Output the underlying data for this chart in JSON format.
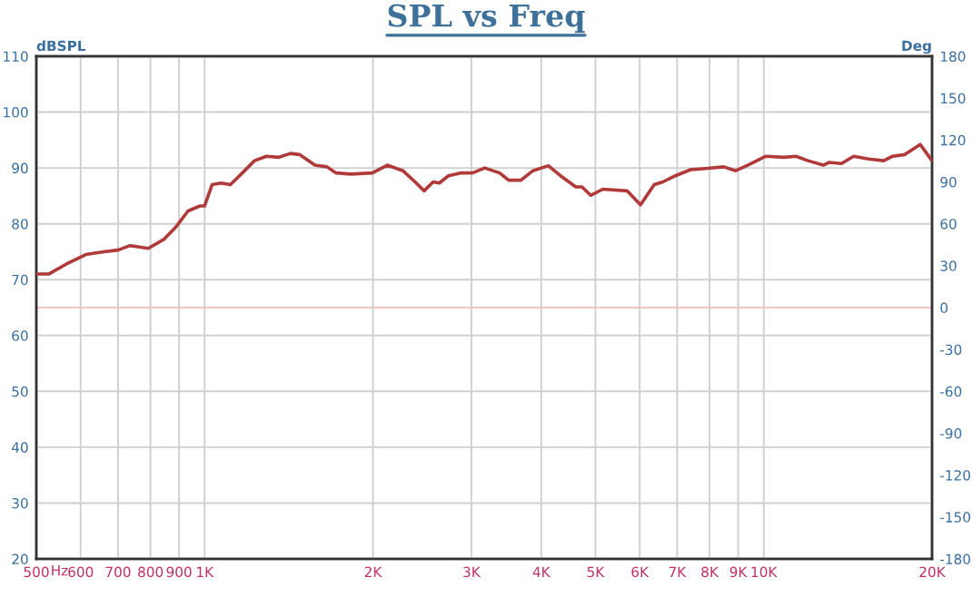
{
  "chart_data": {
    "type": "line",
    "title": "SPL vs Freq",
    "xlabel": "Hz",
    "ylabel": "dBSPL",
    "y2label": "Deg",
    "x": [
      500,
      526,
      566,
      613,
      660,
      700,
      736,
      793,
      845,
      888,
      934,
      981,
      1000,
      1031,
      1070,
      1112,
      1168,
      1228,
      1290,
      1355,
      1424,
      1478,
      1575,
      1655,
      1718,
      1829,
      1995,
      2122,
      2263,
      2379,
      2469,
      2563,
      2629,
      2729,
      2868,
      3015,
      3169,
      3370,
      3499,
      3679,
      3866,
      4118,
      4330,
      4612,
      4730,
      4903,
      5155,
      5697,
      6020,
      6370,
      6600,
      6950,
      7400,
      7870,
      8480,
      8910,
      9360,
      10090,
      10870,
      11420,
      12000,
      12780,
      13100,
      13780,
      14480,
      15400,
      16390,
      17010,
      17880,
      19050,
      20000
    ],
    "series": [
      {
        "color": "#b03a3a",
        "values": [
          71.0,
          71.0,
          72.8,
          74.5,
          75.0,
          75.3,
          76.1,
          75.6,
          77.2,
          79.4,
          82.3,
          83.2,
          83.2,
          87.0,
          87.3,
          87.0,
          89.1,
          91.3,
          92.1,
          91.9,
          92.6,
          92.4,
          90.5,
          90.2,
          89.1,
          88.9,
          89.1,
          90.5,
          89.5,
          87.5,
          85.9,
          87.5,
          87.3,
          88.6,
          89.1,
          89.1,
          90.0,
          89.1,
          87.8,
          87.8,
          89.5,
          90.4,
          88.6,
          86.6,
          86.6,
          85.1,
          86.2,
          85.9,
          83.4,
          87.0,
          87.5,
          88.6,
          89.7,
          89.9,
          90.2,
          89.5,
          90.5,
          92.1,
          91.9,
          92.1,
          91.3,
          90.5,
          91.0,
          90.8,
          92.1,
          91.6,
          91.3,
          92.1,
          92.4,
          94.2,
          91.3
        ]
      }
    ],
    "log": "x",
    "xlim": [
      500,
      20000
    ],
    "xticks": [
      500,
      600,
      700,
      800,
      900,
      {
        "value": 1000,
        "label": "1K"
      },
      {
        "value": 2000,
        "label": "2K"
      },
      {
        "value": 3000,
        "label": "3K"
      },
      {
        "value": 4000,
        "label": "4K"
      },
      {
        "value": 5000,
        "label": "5K"
      },
      {
        "value": 6000,
        "label": "6K"
      },
      {
        "value": 7000,
        "label": "7K"
      },
      {
        "value": 8000,
        "label": "8K"
      },
      {
        "value": 9000,
        "label": "9K"
      },
      {
        "value": 10000,
        "label": "10K"
      },
      {
        "value": 20000,
        "label": "20K"
      }
    ],
    "ylim": [
      20,
      110
    ],
    "yticks": [
      20,
      30,
      40,
      50,
      60,
      70,
      80,
      90,
      100,
      110
    ],
    "y2lim": [
      -180,
      180
    ],
    "y2ticks": [
      -180,
      -150,
      -120,
      -90,
      -60,
      -30,
      0,
      30,
      60,
      90,
      120,
      150,
      180
    ],
    "ref_lines": [
      {
        "axis": "y2",
        "value": 0,
        "color": "#f2c4c4"
      }
    ],
    "grid": true,
    "marker": "none",
    "line_style": "solid",
    "legend": false
  }
}
